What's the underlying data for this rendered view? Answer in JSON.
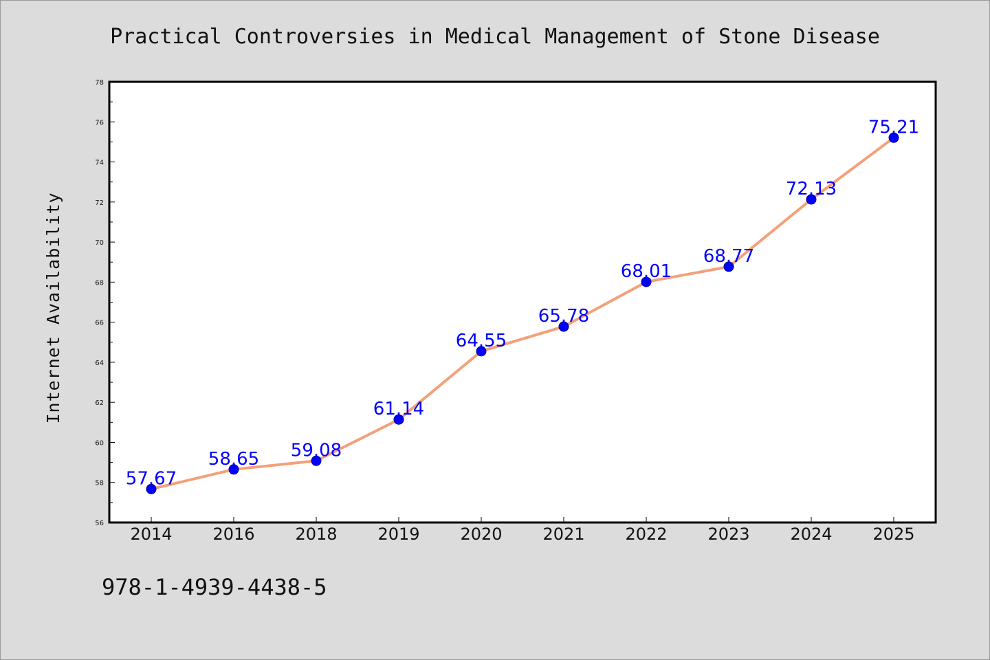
{
  "chart_data": {
    "type": "line",
    "title": "Practical Controversies in Medical Management of Stone Disease",
    "xlabel": "",
    "ylabel": "Internet Availability",
    "categories": [
      "2014",
      "2016",
      "2018",
      "2019",
      "2020",
      "2021",
      "2022",
      "2023",
      "2024",
      "2025"
    ],
    "series": [
      {
        "values": [
          57.67,
          58.65,
          59.08,
          61.14,
          64.55,
          65.78,
          68.01,
          68.77,
          72.13,
          75.21
        ],
        "data_labels": [
          "57.67",
          "58.65",
          "59.08",
          "61.14",
          "64.55",
          "65.78",
          "68.01",
          "68.77",
          "72.13",
          "75.21"
        ],
        "line_color": "#f4a07a",
        "marker_color": "#0000ff"
      }
    ],
    "ylim": [
      56,
      78
    ],
    "yticks": [
      "56",
      "58",
      "60",
      "62",
      "64",
      "66",
      "68",
      "70",
      "72",
      "74",
      "76",
      "78"
    ],
    "grid": false,
    "legend": "none"
  },
  "footer": {
    "text": "978-1-4939-4438-5"
  }
}
